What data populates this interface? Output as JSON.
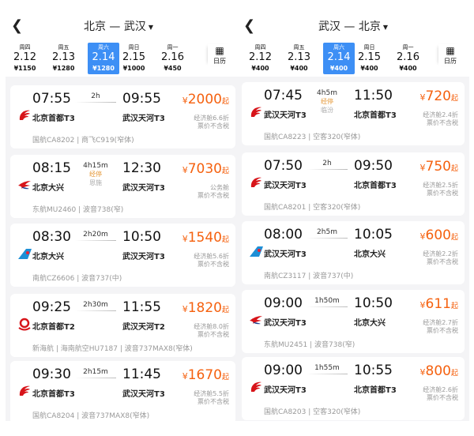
{
  "colors": {
    "accent": "#3d8ff5",
    "price": "#f5610f"
  },
  "panels": [
    {
      "title": "北京 — 武汉",
      "back_icon": "chevron-left-icon",
      "calendar_label": "日历",
      "dates": [
        {
          "weekday": "周四",
          "date": "2.12",
          "price": "¥1150"
        },
        {
          "weekday": "周五",
          "date": "2.13",
          "price": "¥1280"
        },
        {
          "weekday": "周六",
          "date": "2.14",
          "price": "¥1280",
          "selected": true
        },
        {
          "weekday": "周日",
          "date": "2.15",
          "price": "¥1000"
        },
        {
          "weekday": "周一",
          "date": "2.16",
          "price": "¥450"
        }
      ],
      "flights": [
        {
          "airline": "CA",
          "dep_time": "07:55",
          "dep_airport": "北京首都T3",
          "duration": "2h",
          "arr_time": "09:55",
          "arr_airport": "武汉天河T3",
          "price": "2000",
          "note1": "经济舱6.6折",
          "note2": "票价不含税",
          "info": "国航CA8202 | 商飞C919(窄体)"
        },
        {
          "airline": "MU",
          "dep_time": "08:15",
          "dep_airport": "北京大兴",
          "duration": "4h15m",
          "stop": "经停",
          "stop_city": "恩施",
          "arr_time": "12:30",
          "arr_airport": "武汉天河T3",
          "price": "7030",
          "note1": "公务舱",
          "note2": "票价不含税",
          "info": "东航MU2460 | 波音738(窄)"
        },
        {
          "airline": "CZ",
          "dep_time": "08:30",
          "dep_airport": "北京大兴",
          "duration": "2h20m",
          "arr_time": "10:50",
          "arr_airport": "武汉天河T3",
          "price": "1540",
          "note1": "经济舱5.6折",
          "note2": "票价不含税",
          "info": "南航CZ6606 | 波音737(中)"
        },
        {
          "airline": "HU",
          "dep_time": "09:25",
          "dep_airport": "北京首都T2",
          "duration": "2h30m",
          "arr_time": "11:55",
          "arr_airport": "武汉天河T2",
          "price": "1820",
          "note1": "经济舱8.0折",
          "note2": "票价不含税",
          "info": "新海航 | 海南航空HU7187 | 波音737MAX8(窄体)"
        },
        {
          "airline": "CA",
          "dep_time": "09:30",
          "dep_airport": "北京首都T3",
          "duration": "2h15m",
          "arr_time": "11:45",
          "arr_airport": "武汉天河T3",
          "price": "1670",
          "note1": "经济舱5.5折",
          "note2": "票价不含税",
          "info": "国航CA8204 | 波音737MAX8(窄体)"
        }
      ]
    },
    {
      "title": "武汉 — 北京",
      "back_icon": "chevron-left-icon",
      "calendar_label": "日历",
      "dates": [
        {
          "weekday": "周四",
          "date": "2.12",
          "price": "¥400"
        },
        {
          "weekday": "周五",
          "date": "2.13",
          "price": "¥400"
        },
        {
          "weekday": "周六",
          "date": "2.14",
          "price": "¥400",
          "selected": true
        },
        {
          "weekday": "周日",
          "date": "2.15",
          "price": "¥400"
        },
        {
          "weekday": "周一",
          "date": "2.16",
          "price": "¥400"
        }
      ],
      "flights": [
        {
          "airline": "CA",
          "dep_time": "07:45",
          "dep_airport": "武汉天河T3",
          "duration": "4h5m",
          "stop": "经停",
          "stop_city": "临汾",
          "arr_time": "11:50",
          "arr_airport": "北京首都T3",
          "price": "720",
          "note1": "经济舱2.4折",
          "note2": "票价不含税",
          "info": "国航CA8223 | 空客320(窄体)"
        },
        {
          "airline": "CA",
          "dep_time": "07:50",
          "dep_airport": "武汉天河T3",
          "duration": "2h",
          "arr_time": "09:50",
          "arr_airport": "北京首都T3",
          "price": "750",
          "note1": "经济舱2.5折",
          "note2": "票价不含税",
          "info": "国航CA8201 | 空客320(窄体)"
        },
        {
          "airline": "CZ",
          "dep_time": "08:00",
          "dep_airport": "武汉天河T3",
          "duration": "2h5m",
          "arr_time": "10:05",
          "arr_airport": "北京大兴",
          "price": "600",
          "note1": "经济舱2.2折",
          "note2": "票价不含税",
          "info": "南航CZ3117 | 波音737(中)"
        },
        {
          "airline": "MU",
          "dep_time": "09:00",
          "dep_airport": "武汉天河T3",
          "duration": "1h50m",
          "arr_time": "10:50",
          "arr_airport": "北京大兴",
          "price": "611",
          "note1": "经济舱2.7折",
          "note2": "票价不含税",
          "info": "东航MU2451 | 波音738(窄)"
        },
        {
          "airline": "CA",
          "dep_time": "09:00",
          "dep_airport": "武汉天河T3",
          "duration": "1h55m",
          "arr_time": "10:55",
          "arr_airport": "北京首都T3",
          "price": "800",
          "note1": "经济舱2.6折",
          "note2": "票价不含税",
          "info": "国航CA8203 | 空客320(窄体)"
        }
      ],
      "currency": "¥",
      "from_label": "起"
    }
  ],
  "currency": "¥",
  "from_label": "起"
}
